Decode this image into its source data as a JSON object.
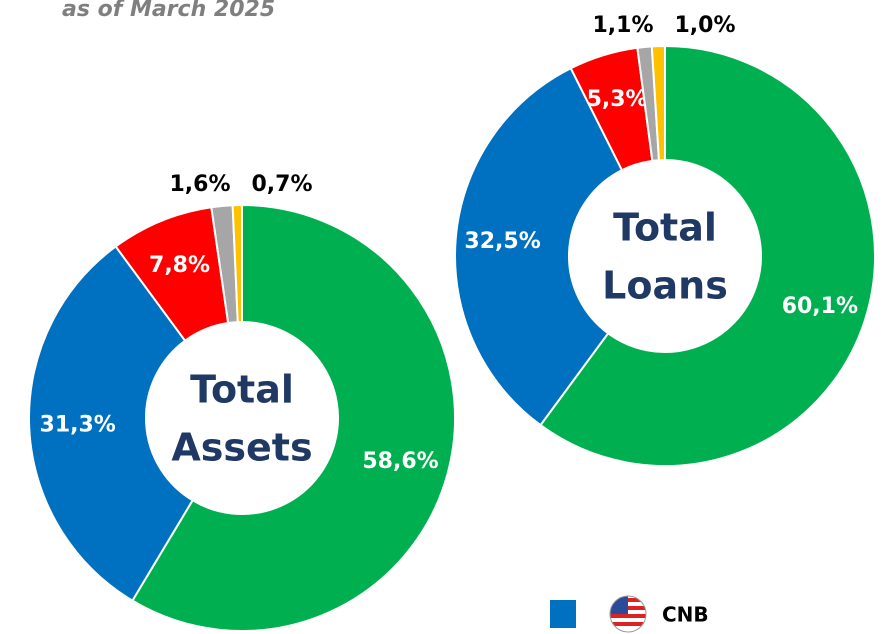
{
  "chart_data": [
    {
      "type": "donut",
      "subtitle": "as of March 2025",
      "center_label": [
        "Total",
        "Assets"
      ],
      "categories": [
        null,
        "CNB",
        null,
        null,
        null
      ],
      "values": [
        58.6,
        31.3,
        7.8,
        1.6,
        0.7
      ],
      "value_labels": [
        "58,6%",
        "31,3%",
        "7,8%",
        "1,6%",
        "0,7%"
      ],
      "colors": [
        "#00b050",
        "#0070c0",
        "#ff0000",
        "#a6a6a6",
        "#ffc000"
      ]
    },
    {
      "type": "donut",
      "center_label": [
        "Total",
        "Loans"
      ],
      "categories": [
        null,
        "CNB",
        null,
        null,
        null
      ],
      "values": [
        60.1,
        32.5,
        5.3,
        1.1,
        1.0
      ],
      "value_labels": [
        "60,1%",
        "32,5%",
        "5,3%",
        "1,1%",
        "1,0%"
      ],
      "colors": [
        "#00b050",
        "#0070c0",
        "#ff0000",
        "#a6a6a6",
        "#ffc000"
      ]
    }
  ]
}
